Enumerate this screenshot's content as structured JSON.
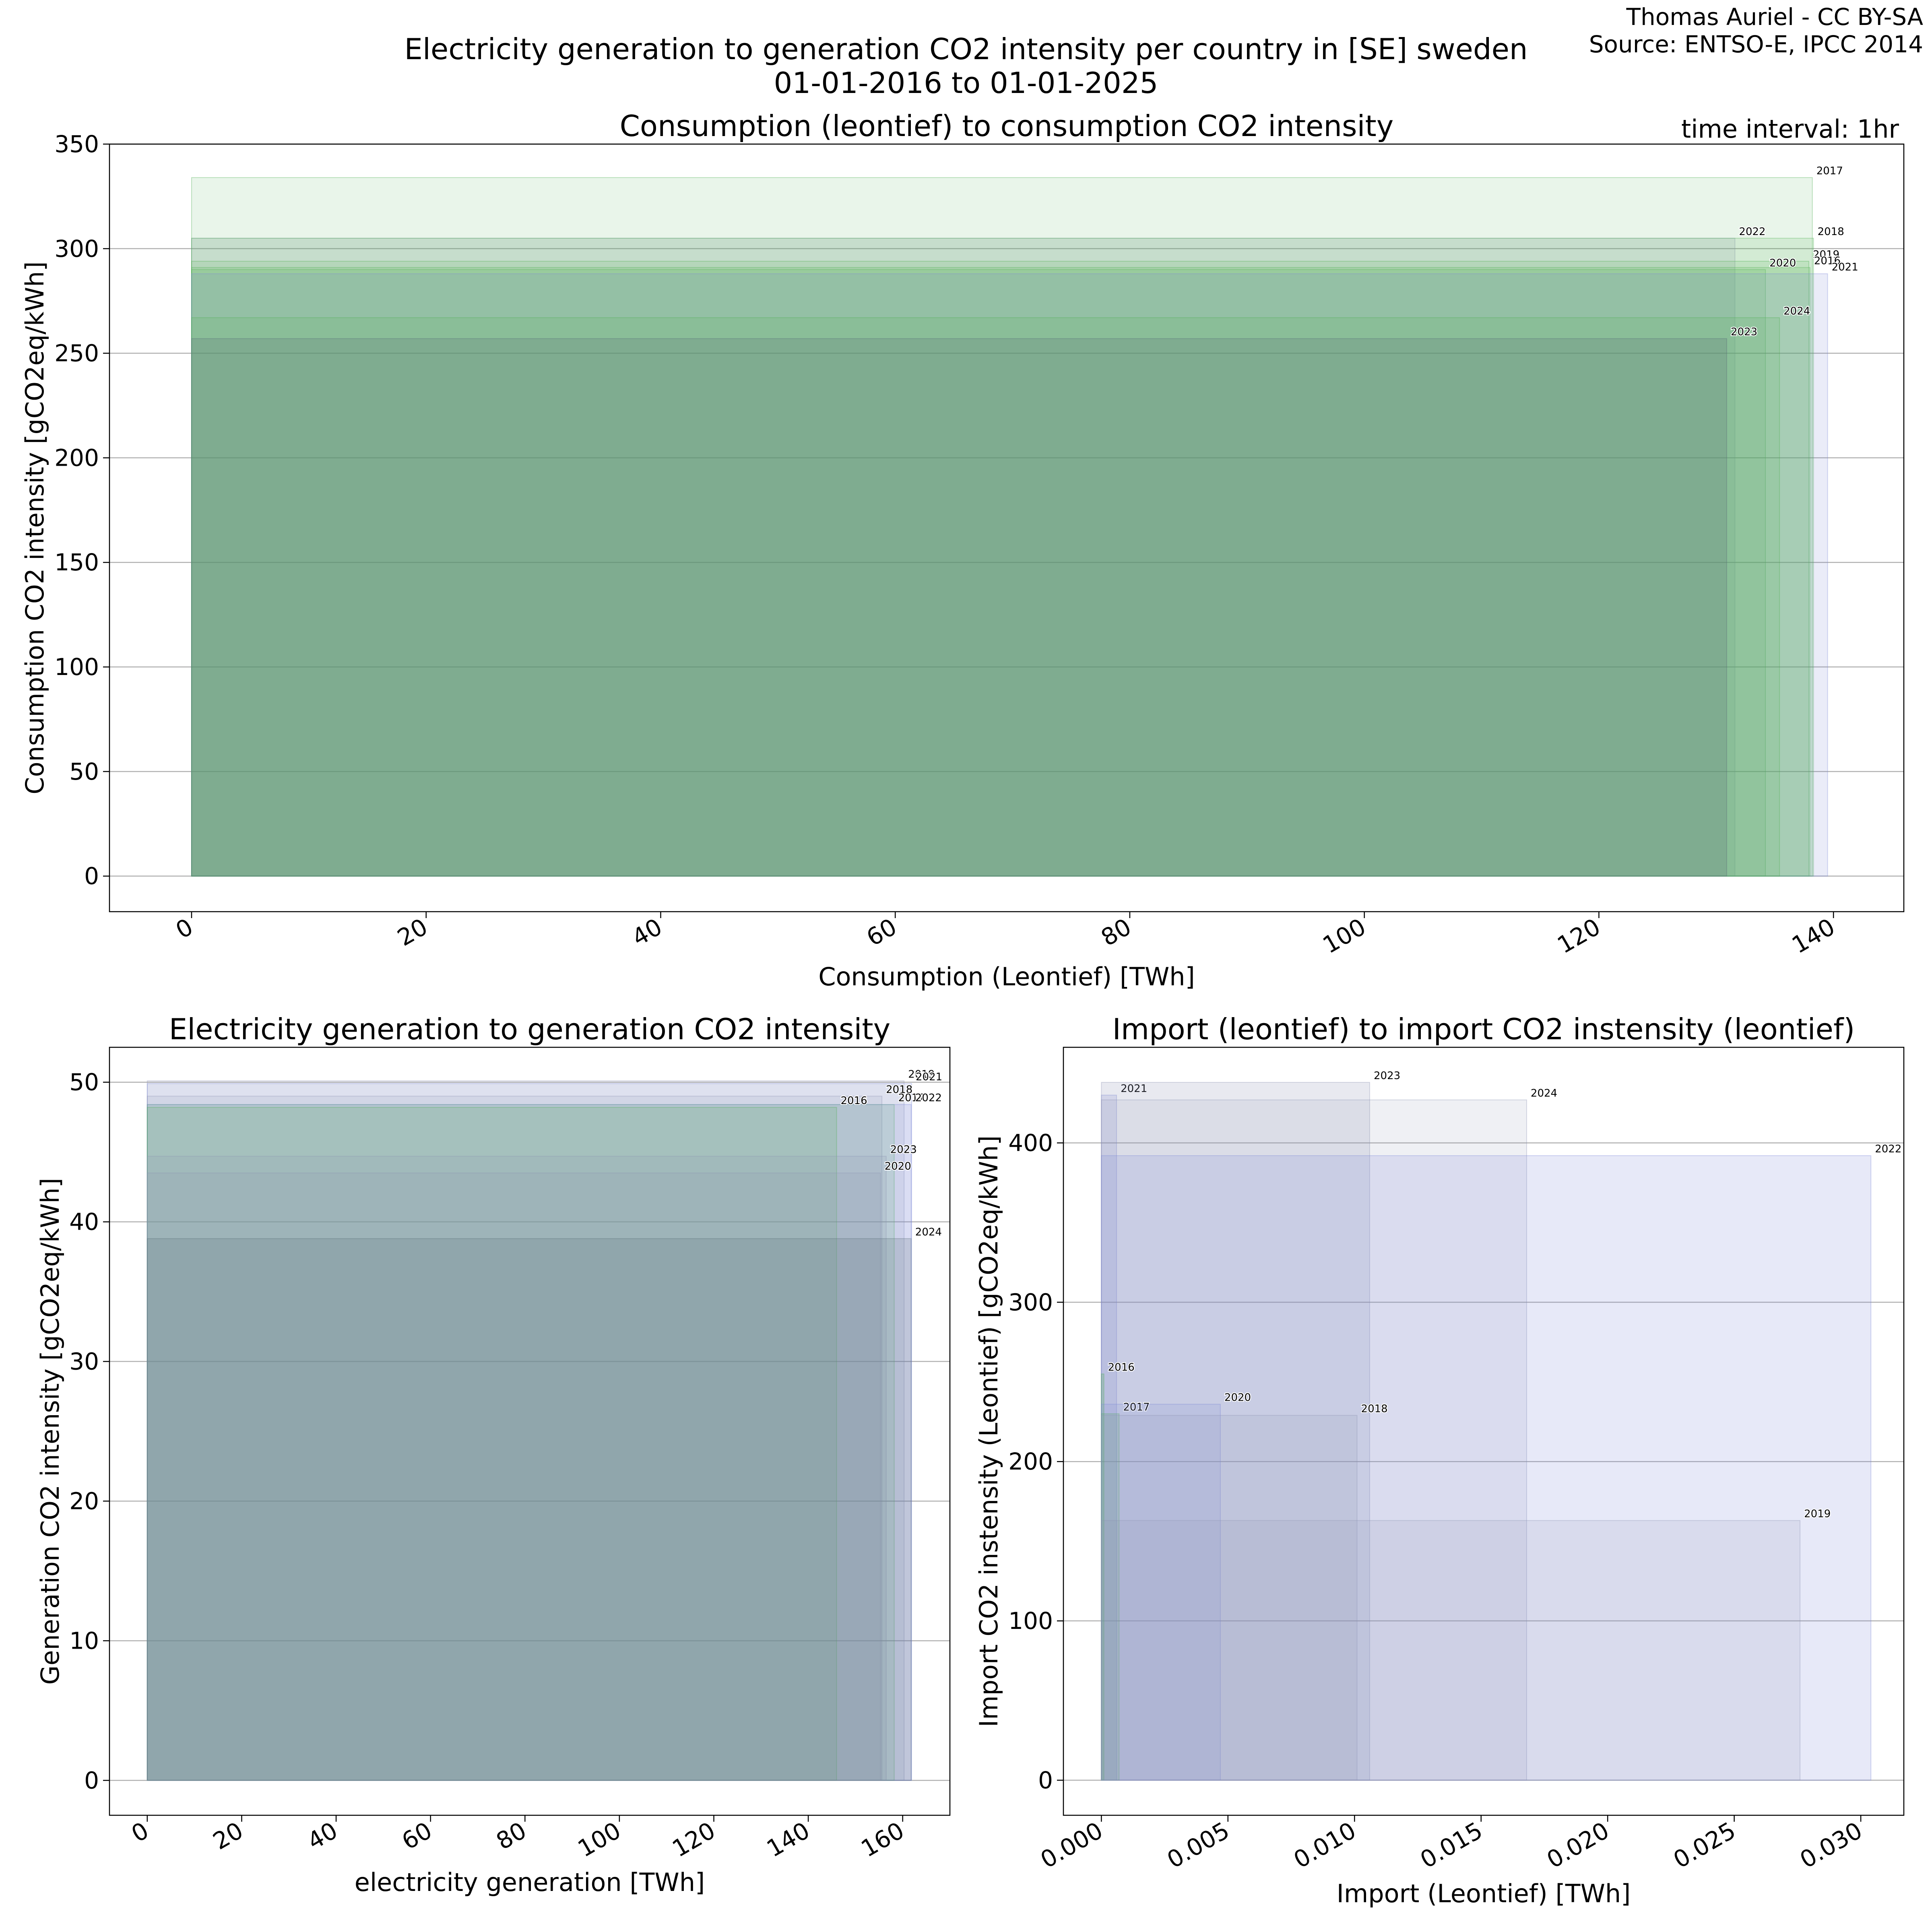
{
  "header": {
    "credit_line1": "Thomas Auriel - CC BY-SA",
    "credit_line2": "Source: ENTSO-E, IPCC 2014",
    "suptitle_line1": "Electricity generation to generation CO2 intensity per country in [SE] sweden",
    "suptitle_line2": "01-01-2016 to 01-01-2025",
    "time_interval": "time interval: 1hr"
  },
  "colors": {
    "green": "#4caf50",
    "blue": "#7b86d6",
    "grey": "#8d93b3",
    "dark": "#5a6e78"
  },
  "chart_data": [
    {
      "type": "bar",
      "id": "consumption",
      "title": "Consumption (leontief) to consumption CO2 intensity",
      "xlabel": "Consumption (Leontief) [TWh]",
      "ylabel": "Consumption CO2 intensity [gCO2eq/kWh]",
      "xlim": [
        -7,
        146
      ],
      "ylim": [
        -17,
        350
      ],
      "xticks": [
        0,
        20,
        40,
        60,
        80,
        100,
        120,
        140
      ],
      "yticks": [
        0,
        50,
        100,
        150,
        200,
        250,
        300,
        350
      ],
      "grid": "horizontal",
      "bars": [
        {
          "label": "2017",
          "x": 138.2,
          "y": 334,
          "color": "green",
          "opacity": 0.12
        },
        {
          "label": "2022",
          "x": 131.6,
          "y": 305,
          "color": "grey",
          "opacity": 0.16
        },
        {
          "label": "2018",
          "x": 138.3,
          "y": 305,
          "color": "green",
          "opacity": 0.14
        },
        {
          "label": "2019",
          "x": 137.9,
          "y": 294,
          "color": "green",
          "opacity": 0.14
        },
        {
          "label": "2016",
          "x": 138.0,
          "y": 291,
          "color": "green",
          "opacity": 0.14
        },
        {
          "label": "2020",
          "x": 134.2,
          "y": 290,
          "color": "green",
          "opacity": 0.14
        },
        {
          "label": "2021",
          "x": 139.5,
          "y": 288,
          "color": "blue",
          "opacity": 0.16
        },
        {
          "label": "2024",
          "x": 135.4,
          "y": 267,
          "color": "green",
          "opacity": 0.14
        },
        {
          "label": "2023",
          "x": 130.9,
          "y": 257,
          "color": "dark",
          "opacity": 0.22
        }
      ]
    },
    {
      "type": "bar",
      "id": "generation",
      "title": "Electricity generation to generation CO2 intensity",
      "xlabel": "electricity generation [TWh]",
      "ylabel": "Generation CO2 intensity [gCO2eq/kWh]",
      "xlim": [
        -8,
        170
      ],
      "ylim": [
        -2.5,
        52.5
      ],
      "xticks": [
        0,
        20,
        40,
        60,
        80,
        100,
        120,
        140,
        160
      ],
      "yticks": [
        0,
        10,
        20,
        30,
        40,
        50
      ],
      "grid": "horizontal",
      "bars": [
        {
          "label": "2019",
          "x": 160.3,
          "y": 50.1,
          "color": "grey",
          "opacity": 0.14
        },
        {
          "label": "2021",
          "x": 161.9,
          "y": 49.9,
          "color": "blue",
          "opacity": 0.14
        },
        {
          "label": "2018",
          "x": 155.6,
          "y": 49.0,
          "color": "grey",
          "opacity": 0.14
        },
        {
          "label": "2017",
          "x": 158.2,
          "y": 48.4,
          "color": "green",
          "opacity": 0.14
        },
        {
          "label": "2022",
          "x": 161.8,
          "y": 48.4,
          "color": "blue",
          "opacity": 0.16
        },
        {
          "label": "2016",
          "x": 146.0,
          "y": 48.2,
          "color": "green",
          "opacity": 0.14
        },
        {
          "label": "2023",
          "x": 156.5,
          "y": 44.7,
          "color": "grey",
          "opacity": 0.14
        },
        {
          "label": "2020",
          "x": 155.3,
          "y": 43.5,
          "color": "grey",
          "opacity": 0.14
        },
        {
          "label": "2024",
          "x": 161.8,
          "y": 38.8,
          "color": "dark",
          "opacity": 0.2
        }
      ]
    },
    {
      "type": "bar",
      "id": "import",
      "title": "Import (leontief) to import CO2 instensity (leontief)",
      "xlabel": "Import (Leontief) [TWh]",
      "ylabel": "Import CO2 instensity (Leontief) [gCO2eq/kWh]",
      "xlim": [
        -0.0015,
        0.0317
      ],
      "ylim": [
        -22,
        460
      ],
      "xticks": [
        0.0,
        0.005,
        0.01,
        0.015,
        0.02,
        0.025,
        0.03
      ],
      "xticklabels": [
        "0.000",
        "0.005",
        "0.010",
        "0.015",
        "0.020",
        "0.025",
        "0.030"
      ],
      "yticks": [
        0,
        100,
        200,
        300,
        400
      ],
      "grid": "horizontal",
      "bars": [
        {
          "label": "2021",
          "x": 0.0006,
          "y": 430,
          "color": "blue",
          "opacity": 0.2
        },
        {
          "label": "2023",
          "x": 0.0106,
          "y": 438,
          "color": "grey",
          "opacity": 0.2
        },
        {
          "label": "2024",
          "x": 0.0168,
          "y": 427,
          "color": "grey",
          "opacity": 0.14
        },
        {
          "label": "2022",
          "x": 0.0304,
          "y": 392,
          "color": "blue",
          "opacity": 0.18
        },
        {
          "label": "2016",
          "x": 0.0001,
          "y": 255,
          "color": "green",
          "opacity": 0.22
        },
        {
          "label": "2017",
          "x": 0.0007,
          "y": 230,
          "color": "green",
          "opacity": 0.18
        },
        {
          "label": "2020",
          "x": 0.0047,
          "y": 236,
          "color": "blue",
          "opacity": 0.16
        },
        {
          "label": "2018",
          "x": 0.0101,
          "y": 229,
          "color": "grey",
          "opacity": 0.14
        },
        {
          "label": "2019",
          "x": 0.0276,
          "y": 163,
          "color": "grey",
          "opacity": 0.16
        }
      ]
    }
  ]
}
